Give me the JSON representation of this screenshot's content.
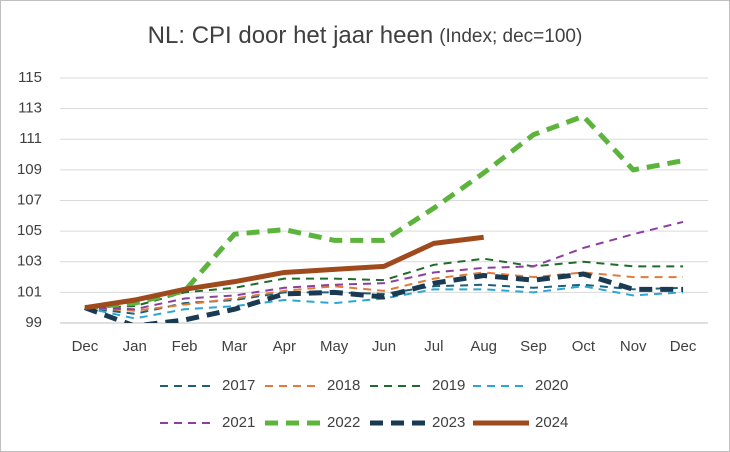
{
  "chart_data": {
    "type": "line",
    "title": "NL: CPI door het jaar heen",
    "subtitle": "(Index; dec=100)",
    "categories": [
      "Dec",
      "Jan",
      "Feb",
      "Mar",
      "Apr",
      "May",
      "Jun",
      "Jul",
      "Aug",
      "Sep",
      "Oct",
      "Nov",
      "Dec"
    ],
    "ylim": [
      99,
      115
    ],
    "yticks": [
      99,
      101,
      103,
      105,
      107,
      109,
      111,
      113,
      115
    ],
    "grid": true,
    "legend": "bottom",
    "series": [
      {
        "name": "2017",
        "color": "#1f5f7a",
        "style": "dashed",
        "weight": "thin",
        "values": [
          100,
          99.6,
          100.3,
          100.5,
          101.0,
          101.0,
          100.9,
          101.4,
          101.5,
          101.3,
          101.5,
          101.2,
          101.3
        ]
      },
      {
        "name": "2018",
        "color": "#e07b39",
        "style": "dashed",
        "weight": "thin",
        "values": [
          100,
          99.8,
          100.2,
          100.6,
          101.1,
          101.4,
          101.1,
          101.9,
          102.3,
          102.0,
          102.3,
          102.0,
          102.0
        ]
      },
      {
        "name": "2019",
        "color": "#1e6b2a",
        "style": "dashed",
        "weight": "thin",
        "values": [
          100,
          100.1,
          101.0,
          101.3,
          101.9,
          101.9,
          101.8,
          102.8,
          103.2,
          102.7,
          103.0,
          102.7,
          102.7
        ]
      },
      {
        "name": "2020",
        "color": "#2aa7d4",
        "style": "dashed",
        "weight": "thin",
        "values": [
          100,
          99.3,
          99.9,
          100.1,
          100.5,
          100.3,
          100.6,
          101.2,
          101.2,
          101.0,
          101.4,
          100.8,
          101.0
        ]
      },
      {
        "name": "2021",
        "color": "#8b3fa0",
        "style": "dashed",
        "weight": "thin",
        "values": [
          100,
          99.9,
          100.6,
          100.8,
          101.3,
          101.5,
          101.6,
          102.3,
          102.6,
          102.7,
          103.9,
          104.8,
          105.6
        ]
      },
      {
        "name": "2022",
        "color": "#5cb43c",
        "style": "dashed",
        "weight": "thick",
        "values": [
          100,
          100.3,
          101.1,
          104.8,
          105.1,
          104.4,
          104.4,
          106.5,
          108.8,
          111.3,
          112.5,
          109.0,
          109.6
        ]
      },
      {
        "name": "2023",
        "color": "#1a3a52",
        "style": "dashed",
        "weight": "thick",
        "values": [
          100,
          98.8,
          99.2,
          99.9,
          100.9,
          101.0,
          100.7,
          101.6,
          102.1,
          101.8,
          102.2,
          101.2,
          101.2
        ]
      },
      {
        "name": "2024",
        "color": "#9e4a1d",
        "style": "solid",
        "weight": "thick",
        "values": [
          100,
          100.5,
          101.2,
          101.7,
          102.3,
          102.5,
          102.7,
          104.2,
          104.6,
          null,
          null,
          null,
          null
        ]
      }
    ]
  }
}
